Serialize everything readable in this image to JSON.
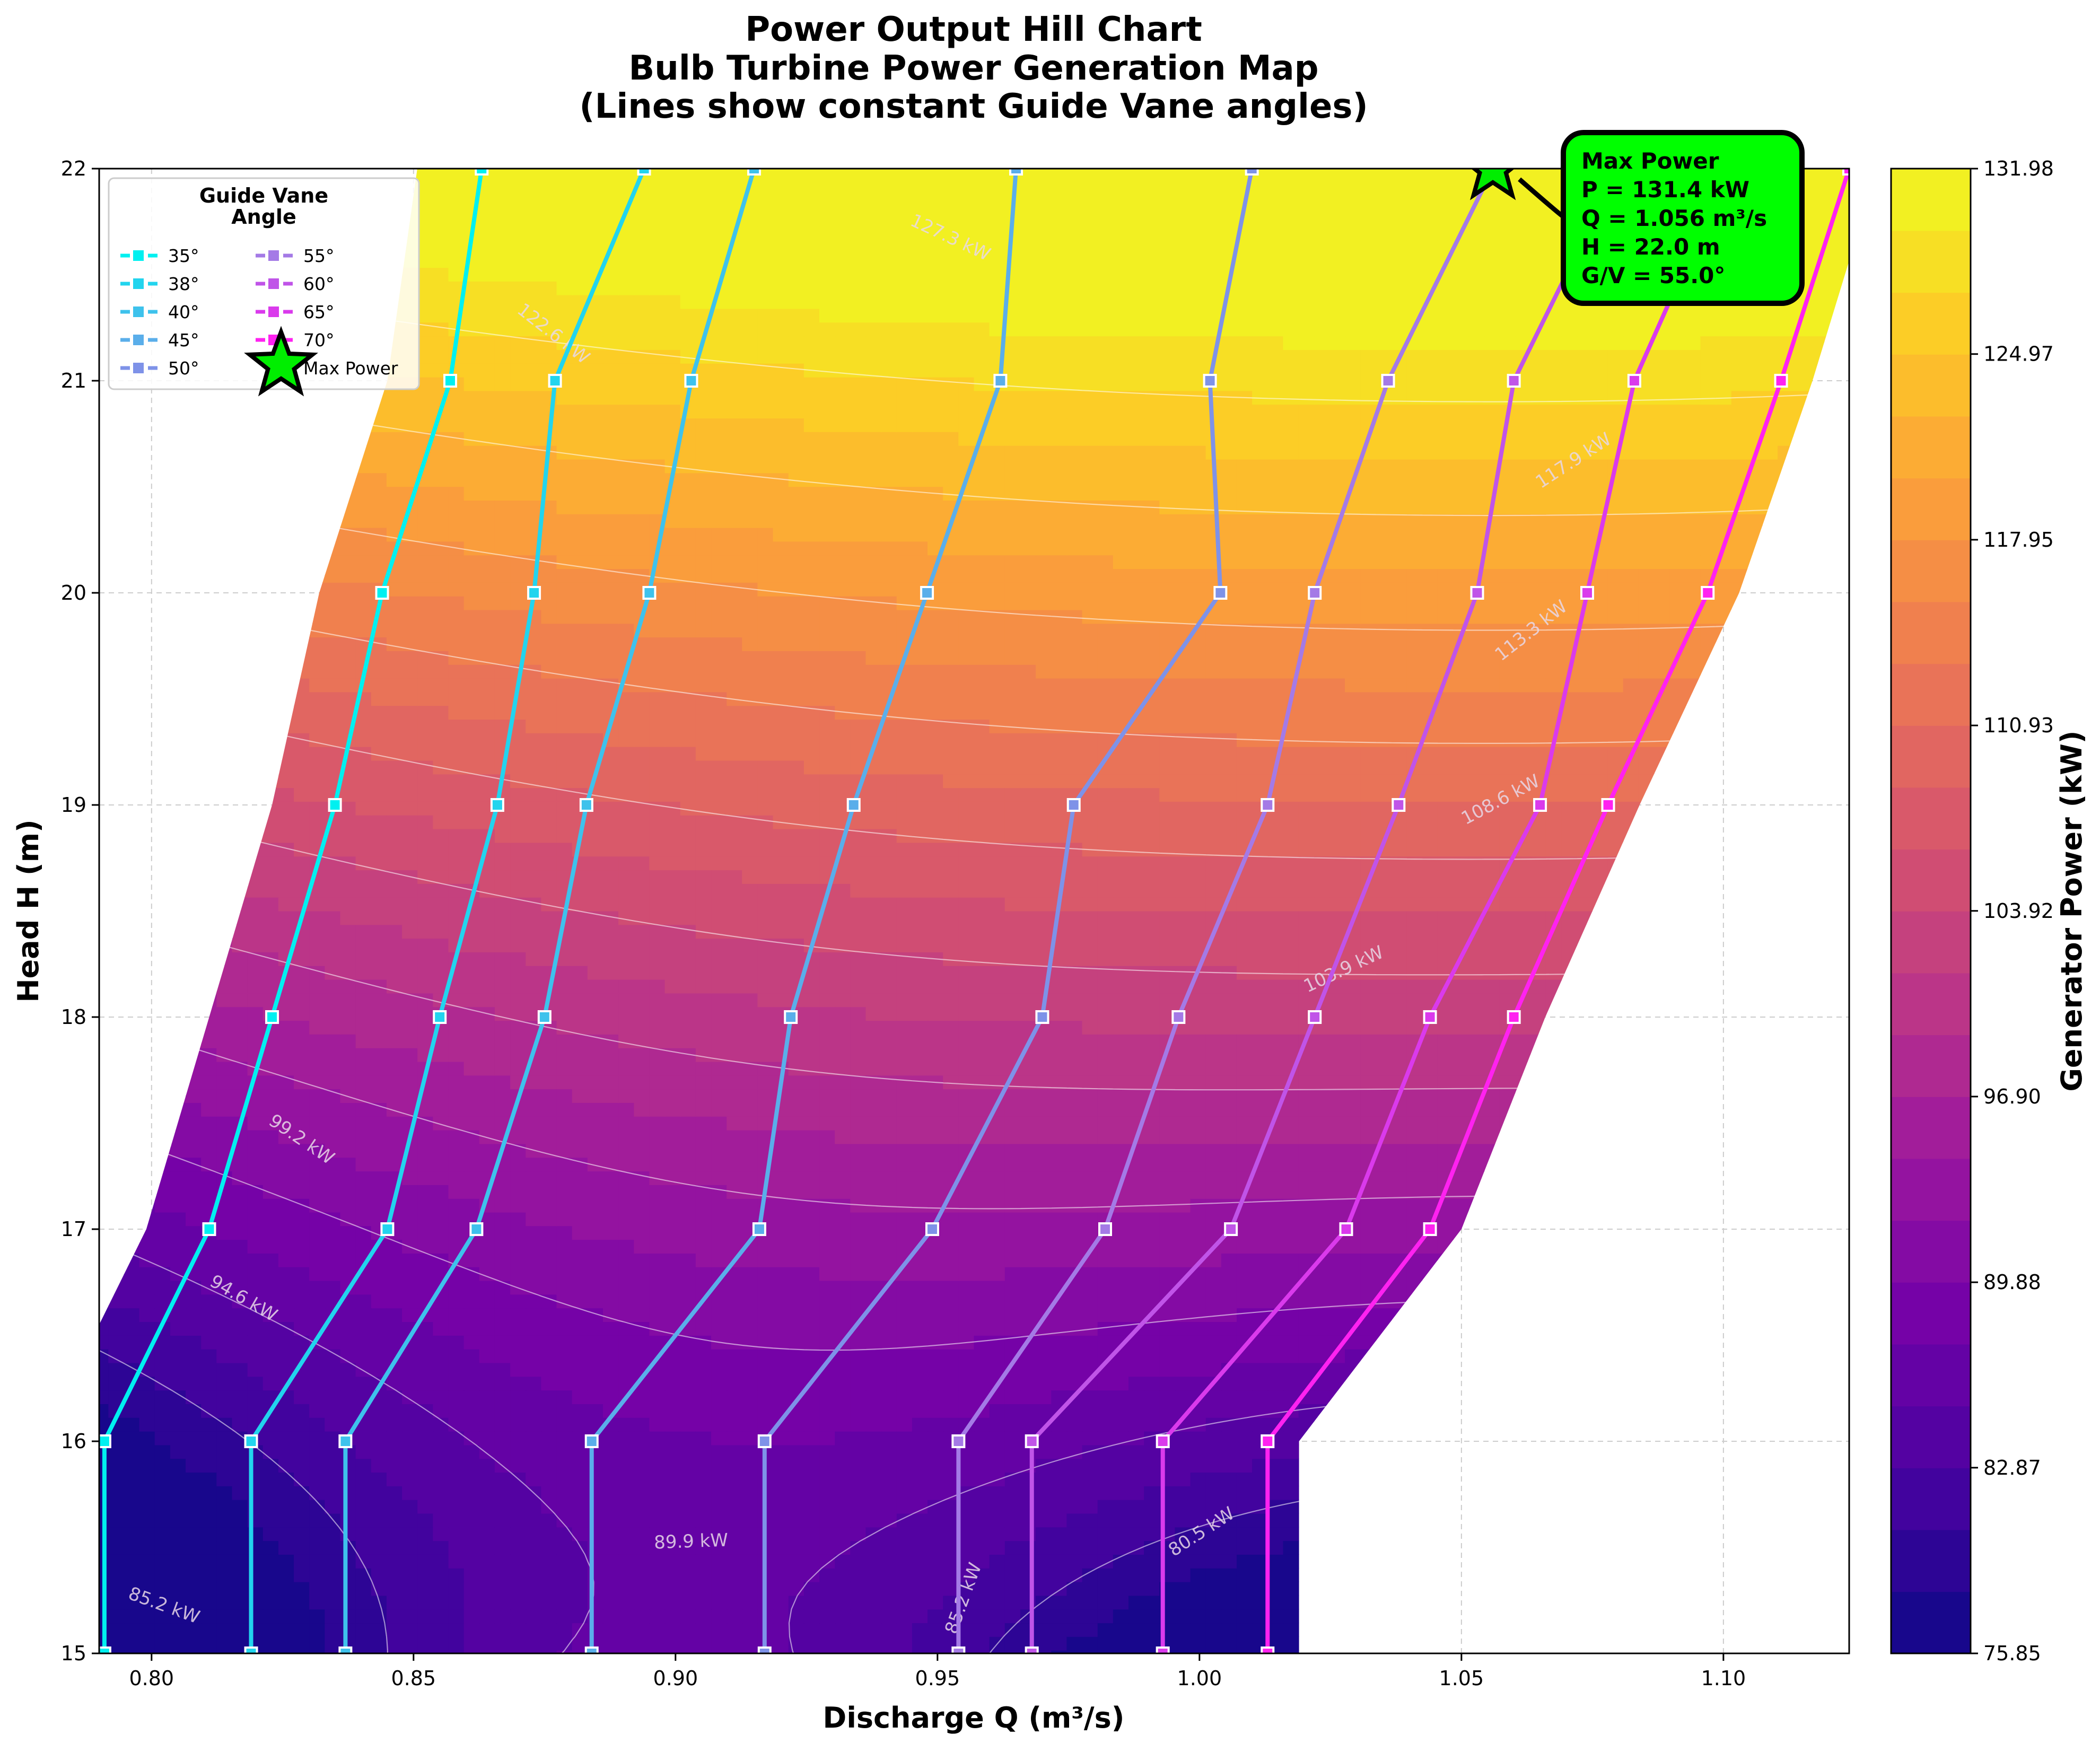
{
  "chart_data": {
    "type": "contour",
    "title_lines": [
      "Power Output Hill Chart",
      "Bulb Turbine Power Generation Map",
      "(Lines show constant Guide Vane angles)"
    ],
    "xlabel": "Discharge Q (m³/s)",
    "ylabel": "Head H (m)",
    "colorbar_label": "Generator Power (kW)",
    "xlim": [
      0.79,
      1.124
    ],
    "ylim": [
      15,
      22
    ],
    "x_ticks": [
      "0.80",
      "0.85",
      "0.90",
      "0.95",
      "1.00",
      "1.05",
      "1.10"
    ],
    "y_ticks": [
      "15",
      "16",
      "17",
      "18",
      "19",
      "20",
      "21",
      "22"
    ],
    "colorbar_range": [
      75.85,
      131.98
    ],
    "colorbar_ticks": [
      "75.85",
      "82.87",
      "89.88",
      "96.90",
      "103.92",
      "110.93",
      "117.95",
      "124.97",
      "131.98"
    ],
    "grid": true,
    "colormap": [
      "#0d0887",
      "#46039f",
      "#7201a8",
      "#9c179e",
      "#bd3786",
      "#d8576b",
      "#ed7953",
      "#fb9f3a",
      "#fdca26",
      "#f0f921"
    ],
    "legend": {
      "title_lines": [
        "Guide Vane",
        "Angle"
      ],
      "position": "upper-left",
      "max_power_label": "Max Power"
    },
    "guide_vane_series": [
      {
        "name": "35°",
        "color": "#00f0f0",
        "points": [
          [
            0.791,
            15
          ],
          [
            0.791,
            16
          ],
          [
            0.811,
            17
          ],
          [
            0.823,
            18
          ],
          [
            0.835,
            19
          ],
          [
            0.844,
            20
          ],
          [
            0.857,
            21
          ],
          [
            0.863,
            22
          ]
        ]
      },
      {
        "name": "38°",
        "color": "#22d4ee",
        "points": [
          [
            0.819,
            15
          ],
          [
            0.819,
            16
          ],
          [
            0.845,
            17
          ],
          [
            0.855,
            18
          ],
          [
            0.866,
            19
          ],
          [
            0.873,
            20
          ],
          [
            0.877,
            21
          ],
          [
            0.894,
            22
          ]
        ]
      },
      {
        "name": "40°",
        "color": "#3ec2ec",
        "points": [
          [
            0.837,
            15
          ],
          [
            0.837,
            16
          ],
          [
            0.862,
            17
          ],
          [
            0.875,
            18
          ],
          [
            0.883,
            19
          ],
          [
            0.895,
            20
          ],
          [
            0.903,
            21
          ],
          [
            0.915,
            22
          ]
        ]
      },
      {
        "name": "45°",
        "color": "#5aaeea",
        "points": [
          [
            0.884,
            15
          ],
          [
            0.884,
            16
          ],
          [
            0.916,
            17
          ],
          [
            0.922,
            18
          ],
          [
            0.934,
            19
          ],
          [
            0.948,
            20
          ],
          [
            0.962,
            21
          ],
          [
            0.965,
            22
          ]
        ]
      },
      {
        "name": "50°",
        "color": "#7e92e8",
        "points": [
          [
            0.917,
            15
          ],
          [
            0.917,
            16
          ],
          [
            0.949,
            17
          ],
          [
            0.97,
            18
          ],
          [
            0.976,
            19
          ],
          [
            1.004,
            20
          ],
          [
            1.002,
            21
          ],
          [
            1.01,
            22
          ]
        ]
      },
      {
        "name": "55°",
        "color": "#a47ae6",
        "points": [
          [
            0.954,
            15
          ],
          [
            0.954,
            16
          ],
          [
            0.982,
            17
          ],
          [
            0.996,
            18
          ],
          [
            1.013,
            19
          ],
          [
            1.022,
            20
          ],
          [
            1.036,
            21
          ],
          [
            1.056,
            22
          ]
        ]
      },
      {
        "name": "60°",
        "color": "#c054e8",
        "points": [
          [
            0.968,
            15
          ],
          [
            0.968,
            16
          ],
          [
            1.006,
            17
          ],
          [
            1.022,
            18
          ],
          [
            1.038,
            19
          ],
          [
            1.053,
            20
          ],
          [
            1.06,
            21
          ],
          [
            1.08,
            22
          ]
        ]
      },
      {
        "name": "65°",
        "color": "#da3aec",
        "points": [
          [
            0.993,
            15
          ],
          [
            0.993,
            16
          ],
          [
            1.028,
            17
          ],
          [
            1.044,
            18
          ],
          [
            1.065,
            19
          ],
          [
            1.074,
            20
          ],
          [
            1.083,
            21
          ],
          [
            1.101,
            22
          ]
        ]
      },
      {
        "name": "70°",
        "color": "#ff22f0",
        "points": [
          [
            1.013,
            15
          ],
          [
            1.013,
            16
          ],
          [
            1.044,
            17
          ],
          [
            1.06,
            18
          ],
          [
            1.078,
            19
          ],
          [
            1.097,
            20
          ],
          [
            1.111,
            21
          ],
          [
            1.124,
            22
          ]
        ]
      }
    ],
    "contour_labels": [
      {
        "text": "80.5 kW",
        "x": 1.001,
        "y": 15.55,
        "angle": -33
      },
      {
        "text": "85.2 kW",
        "x": 0.802,
        "y": 15.2,
        "angle": 20
      },
      {
        "text": "85.2 kW",
        "x": 0.956,
        "y": 15.25,
        "angle": -70
      },
      {
        "text": "89.9 kW",
        "x": 0.903,
        "y": 15.5,
        "angle": -2
      },
      {
        "text": "94.6 kW",
        "x": 0.817,
        "y": 16.65,
        "angle": 30
      },
      {
        "text": "99.2 kW",
        "x": 0.828,
        "y": 17.4,
        "angle": 34
      },
      {
        "text": "103.9 kW",
        "x": 1.028,
        "y": 18.2,
        "angle": -25
      },
      {
        "text": "108.6 kW",
        "x": 1.058,
        "y": 19.0,
        "angle": -28
      },
      {
        "text": "113.3 kW",
        "x": 1.064,
        "y": 19.8,
        "angle": -38
      },
      {
        "text": "117.9 kW",
        "x": 1.072,
        "y": 20.6,
        "angle": -33
      },
      {
        "text": "122.6 kW",
        "x": 0.876,
        "y": 21.2,
        "angle": 38
      },
      {
        "text": "127.3 kW",
        "x": 0.952,
        "y": 21.65,
        "angle": 25
      }
    ],
    "max_power": {
      "q": 1.056,
      "h": 22.0,
      "p": 131.4,
      "gv": 55.0
    },
    "annotation": {
      "lines": [
        "Max Power",
        "P = 131.4 kW",
        "Q = 1.056 m³/s",
        "H = 22.0 m",
        "G/V = 55.0°"
      ],
      "background": "#00ff00"
    }
  }
}
